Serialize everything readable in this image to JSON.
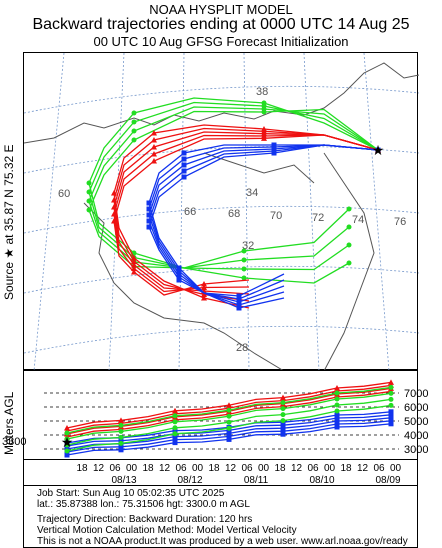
{
  "header": {
    "line1": "NOAA HYSPLIT MODEL",
    "line2": "Backward trajectories ending at 0000 UTC 14 Aug 25",
    "line3": "00 UTC 10 Aug    GFSG  Forecast Initialization"
  },
  "side_labels": {
    "source": "Source ★  at   35.87 N   75.32 E",
    "meters": "Meters AGL"
  },
  "map": {
    "lat_labels": [
      "38",
      "34",
      "32",
      "28"
    ],
    "lon_labels": [
      "60",
      "66",
      "68",
      "70",
      "72",
      "74",
      "76"
    ],
    "source": {
      "lat": 35.87,
      "lon": 75.32
    }
  },
  "profile": {
    "start_height_label": "3300",
    "height_ticks": [
      "7000",
      "6000",
      "5000",
      "4000",
      "3000"
    ]
  },
  "time_axis": {
    "hour_labels": [
      "18",
      "12",
      "06",
      "00",
      "18",
      "12",
      "06",
      "00",
      "18",
      "12",
      "06",
      "00",
      "18",
      "12",
      "06",
      "00",
      "18",
      "12",
      "06",
      "00"
    ],
    "date_labels": [
      "08/13",
      "08/12",
      "08/11",
      "08/10",
      "08/09"
    ]
  },
  "info": {
    "line1": "Job Start: Sun Aug 10 05:02:35 UTC 2025",
    "line2": "lat.: 35.87388   lon.: 75.31506   hgt: 3300.0 m AGL",
    "line3": "Trajectory Direction: Backward      Duration: 120 hrs",
    "line4": "Vertical Motion Calculation Method: Model Vertical Velocity",
    "line5": "This is not a NOAA product.It was produced by a web user. www.arl.noaa.gov/ready"
  },
  "colors": {
    "red": "#ee1111",
    "blue": "#1133ee",
    "green": "#22dd22",
    "grid": "#7799cc",
    "border": "#555555"
  }
}
